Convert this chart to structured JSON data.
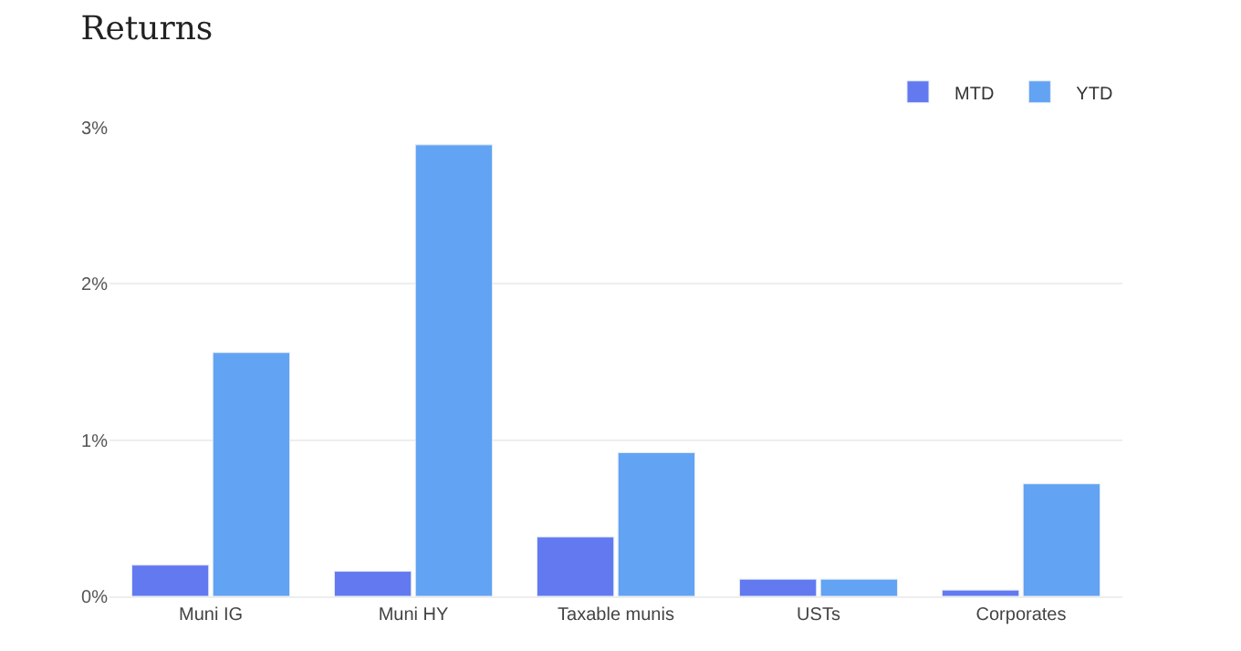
{
  "chart_data": {
    "type": "bar",
    "title": "Returns",
    "categories": [
      "Muni IG",
      "Muni HY",
      "Taxable munis",
      "USTs",
      "Corporates"
    ],
    "series": [
      {
        "name": "MTD",
        "color": "#6279f0",
        "values": [
          0.2,
          0.16,
          0.38,
          0.11,
          0.04
        ]
      },
      {
        "name": "YTD",
        "color": "#62a3f3",
        "values": [
          1.56,
          2.89,
          0.92,
          0.11,
          0.72
        ]
      }
    ],
    "ylim": [
      0,
      3
    ],
    "yticks": [
      {
        "value": 0,
        "label": "0%"
      },
      {
        "value": 1,
        "label": "1%"
      },
      {
        "value": 2,
        "label": "2%"
      },
      {
        "value": 3,
        "label": "3%"
      }
    ],
    "grid": "y",
    "legend": "top right"
  }
}
